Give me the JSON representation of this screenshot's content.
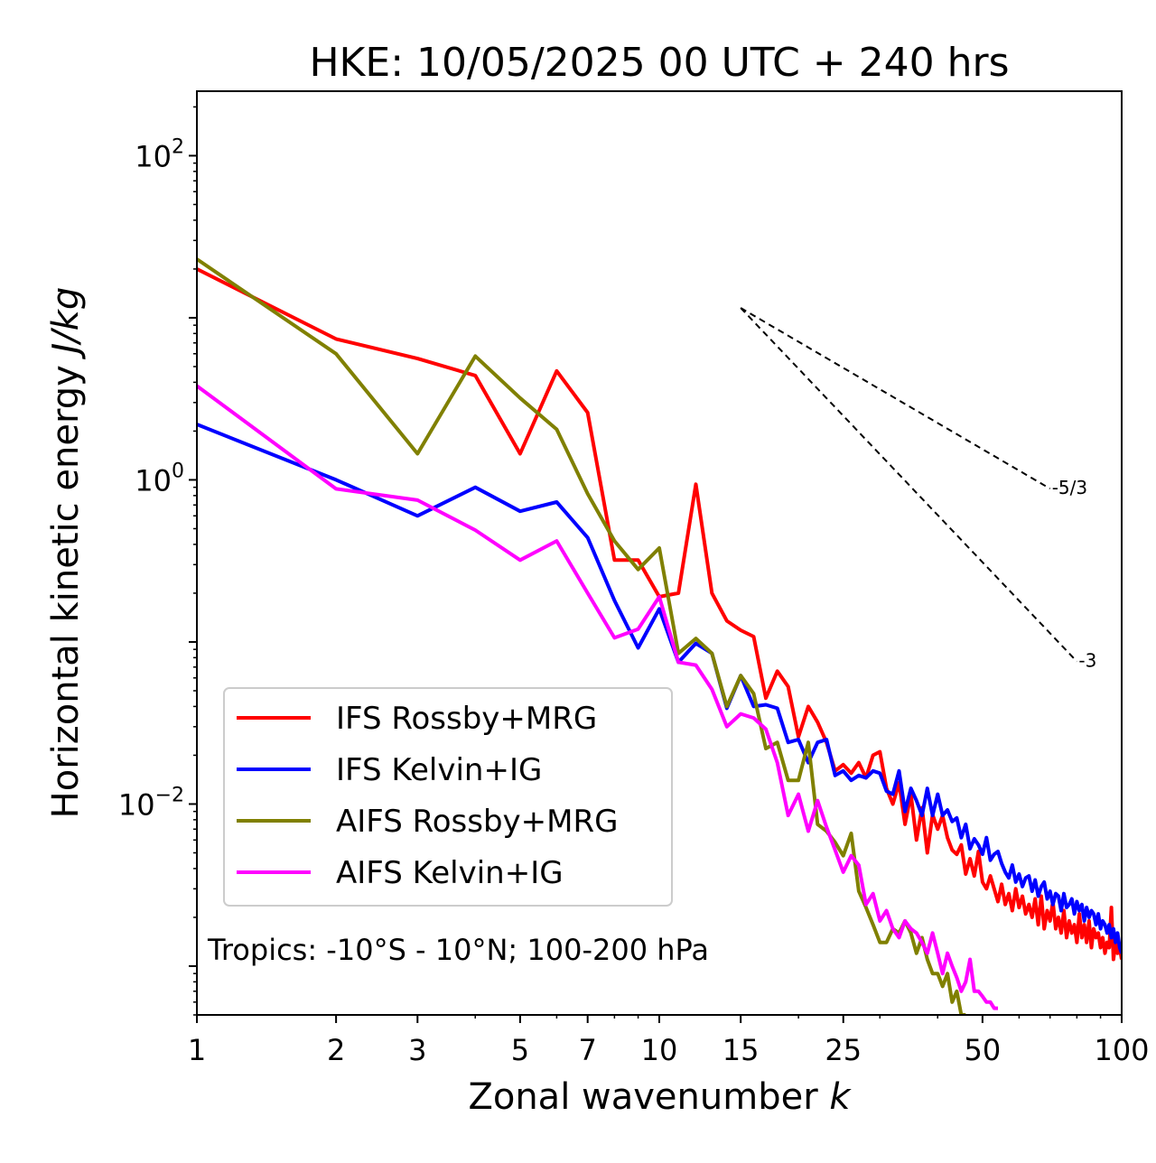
{
  "chart_data": {
    "type": "line",
    "title": "HKE: 10/05/2025 00 UTC + 240 hrs",
    "xlabel_text": "Zonal wavenumber ",
    "xlabel_var": "k",
    "ylabel_text": "Horizontal kinetic energy ",
    "ylabel_unit": "J/kg",
    "x_scale": "log",
    "y_scale": "log",
    "xlim": [
      1,
      100
    ],
    "ylim": [
      0.0005,
      250
    ],
    "x_ticks": [
      1,
      2,
      3,
      5,
      7,
      10,
      15,
      25,
      50,
      100
    ],
    "x_tick_labels": [
      "1",
      "2",
      "3",
      "5",
      "7",
      "10",
      "15",
      "25",
      "50",
      "100"
    ],
    "y_ticks": [
      {
        "value": 100,
        "base": "10",
        "exp": "2"
      },
      {
        "value": 1,
        "base": "10",
        "exp": "0"
      },
      {
        "value": 0.01,
        "base": "10",
        "exp": "−2"
      }
    ],
    "grid": false,
    "legend_position": "lower-left",
    "annotation": "Tropics: -10°S - 10°N; 100-200 hPa",
    "reference_slopes": [
      {
        "label": "-5/3",
        "slope": -1.6667,
        "x_start": 15,
        "y_start": 11.5,
        "x_end": 70
      },
      {
        "label": "-3",
        "slope": -3,
        "x_start": 15,
        "y_start": 11.5,
        "x_end": 80
      }
    ],
    "series": [
      {
        "name": "IFS Rossby+MRG",
        "color": "#ff0000",
        "x": [
          1,
          2,
          3,
          4,
          5,
          6,
          7,
          8,
          9,
          10,
          11,
          12,
          13,
          14,
          15,
          16,
          17,
          18,
          19,
          20,
          21,
          22,
          23,
          24,
          25,
          26,
          27,
          28,
          29,
          30,
          31,
          32,
          33,
          34,
          35,
          36,
          37,
          38,
          39,
          40,
          41,
          42,
          43,
          44,
          45,
          46,
          47,
          48,
          49,
          50,
          51,
          52,
          53,
          54,
          55,
          56,
          57,
          58,
          59,
          60,
          61,
          62,
          63,
          64,
          65,
          66,
          67,
          68,
          69,
          70,
          71,
          72,
          73,
          74,
          75,
          76,
          77,
          78,
          79,
          80,
          81,
          82,
          83,
          84,
          85,
          86,
          87,
          88,
          89,
          90,
          91,
          92,
          93,
          94,
          95,
          96,
          97,
          98,
          99,
          100
        ],
        "y": [
          20,
          7.4,
          5.6,
          4.4,
          1.45,
          4.7,
          2.6,
          0.32,
          0.32,
          0.19,
          0.2,
          0.94,
          0.2,
          0.135,
          0.118,
          0.108,
          0.045,
          0.066,
          0.053,
          0.026,
          0.04,
          0.032,
          0.024,
          0.016,
          0.0175,
          0.0155,
          0.018,
          0.0145,
          0.02,
          0.021,
          0.0125,
          0.01,
          0.0135,
          0.0075,
          0.0115,
          0.006,
          0.0095,
          0.005,
          0.0086,
          0.007,
          0.0085,
          0.0062,
          0.0052,
          0.0049,
          0.0056,
          0.0037,
          0.0046,
          0.0036,
          0.0051,
          0.0033,
          0.003,
          0.0036,
          0.003,
          0.0025,
          0.0032,
          0.0024,
          0.0028,
          0.0022,
          0.003,
          0.0023,
          0.0027,
          0.0021,
          0.0024,
          0.002,
          0.0026,
          0.0018,
          0.0027,
          0.0017,
          0.0022,
          0.0019,
          0.0025,
          0.0017,
          0.002,
          0.0016,
          0.0022,
          0.0015,
          0.0019,
          0.0016,
          0.0018,
          0.0014,
          0.0021,
          0.0015,
          0.0018,
          0.0014,
          0.0019,
          0.0013,
          0.0017,
          0.0015,
          0.0016,
          0.0013,
          0.0015,
          0.0012,
          0.0014,
          0.0013,
          0.0023,
          0.0011,
          0.0014,
          0.0012,
          0.0013,
          0.0011
        ]
      },
      {
        "name": "IFS Kelvin+IG",
        "color": "#0000ff",
        "x": [
          1,
          2,
          3,
          4,
          5,
          6,
          7,
          8,
          9,
          10,
          11,
          12,
          13,
          14,
          15,
          16,
          17,
          18,
          19,
          20,
          21,
          22,
          23,
          24,
          25,
          26,
          27,
          28,
          29,
          30,
          31,
          32,
          33,
          34,
          35,
          36,
          37,
          38,
          39,
          40,
          41,
          42,
          43,
          44,
          45,
          46,
          47,
          48,
          49,
          50,
          51,
          52,
          53,
          54,
          55,
          56,
          57,
          58,
          59,
          60,
          61,
          62,
          63,
          64,
          65,
          66,
          67,
          68,
          69,
          70,
          71,
          72,
          73,
          74,
          75,
          76,
          77,
          78,
          79,
          80,
          81,
          82,
          83,
          84,
          85,
          86,
          87,
          88,
          89,
          90,
          91,
          92,
          93,
          94,
          95,
          96,
          97,
          98,
          99,
          100
        ],
        "y": [
          2.2,
          1.0,
          0.6,
          0.9,
          0.64,
          0.73,
          0.44,
          0.18,
          0.092,
          0.16,
          0.075,
          0.098,
          0.085,
          0.039,
          0.062,
          0.04,
          0.041,
          0.039,
          0.024,
          0.025,
          0.018,
          0.024,
          0.025,
          0.015,
          0.016,
          0.014,
          0.015,
          0.0145,
          0.016,
          0.0155,
          0.012,
          0.0115,
          0.016,
          0.009,
          0.0125,
          0.0105,
          0.0085,
          0.0125,
          0.0085,
          0.0115,
          0.0085,
          0.0092,
          0.0078,
          0.0082,
          0.0062,
          0.0075,
          0.0053,
          0.0061,
          0.0056,
          0.0049,
          0.0062,
          0.0045,
          0.0049,
          0.0051,
          0.0043,
          0.0038,
          0.0035,
          0.0042,
          0.0033,
          0.0037,
          0.0031,
          0.0035,
          0.0036,
          0.0029,
          0.0034,
          0.0027,
          0.0031,
          0.0033,
          0.0026,
          0.0029,
          0.0024,
          0.0028,
          0.0027,
          0.0022,
          0.0028,
          0.0023,
          0.0024,
          0.0026,
          0.0021,
          0.0025,
          0.0022,
          0.0024,
          0.0019,
          0.0023,
          0.002,
          0.0022,
          0.0021,
          0.0018,
          0.0021,
          0.0017,
          0.0019,
          0.0018,
          0.0016,
          0.0018,
          0.0015,
          0.0017,
          0.0014,
          0.0016,
          0.0013,
          0.0012
        ]
      },
      {
        "name": "AIFS Rossby+MRG",
        "color": "#808000",
        "x": [
          1,
          2,
          3,
          4,
          5,
          6,
          7,
          8,
          9,
          10,
          11,
          12,
          13,
          14,
          15,
          16,
          17,
          18,
          19,
          20,
          21,
          22,
          23,
          24,
          25,
          26,
          27,
          28,
          29,
          30,
          31,
          32,
          33,
          34,
          35,
          36,
          37,
          38,
          39,
          40,
          41,
          42,
          43,
          44,
          45,
          46
        ],
        "y": [
          23,
          6.0,
          1.45,
          5.8,
          3.2,
          2.05,
          0.82,
          0.42,
          0.28,
          0.38,
          0.085,
          0.105,
          0.085,
          0.04,
          0.062,
          0.048,
          0.022,
          0.024,
          0.014,
          0.014,
          0.024,
          0.0075,
          0.0068,
          0.0058,
          0.0048,
          0.0066,
          0.0029,
          0.0023,
          0.0018,
          0.0014,
          0.0014,
          0.0017,
          0.0016,
          0.0019,
          0.0016,
          0.0012,
          0.0015,
          0.0011,
          0.0009,
          0.0009,
          0.00075,
          0.0009,
          0.0006,
          0.0007,
          0.0005,
          0.0005
        ]
      },
      {
        "name": "AIFS Kelvin+IG",
        "color": "#ff00ff",
        "x": [
          1,
          2,
          3,
          4,
          5,
          6,
          7,
          8,
          9,
          10,
          11,
          12,
          13,
          14,
          15,
          16,
          17,
          18,
          19,
          20,
          21,
          22,
          23,
          24,
          25,
          26,
          27,
          28,
          29,
          30,
          31,
          32,
          33,
          34,
          35,
          36,
          37,
          38,
          39,
          40,
          41,
          42,
          43,
          44,
          45,
          46,
          47,
          48,
          49,
          50,
          51,
          52,
          53,
          54
        ],
        "y": [
          3.8,
          0.88,
          0.75,
          0.49,
          0.32,
          0.42,
          0.2,
          0.106,
          0.12,
          0.19,
          0.075,
          0.072,
          0.051,
          0.03,
          0.036,
          0.034,
          0.029,
          0.018,
          0.0085,
          0.0115,
          0.0068,
          0.0105,
          0.0072,
          0.0052,
          0.0038,
          0.0048,
          0.0042,
          0.0024,
          0.0028,
          0.0019,
          0.0022,
          0.0017,
          0.0015,
          0.0019,
          0.0017,
          0.0016,
          0.0014,
          0.0012,
          0.0016,
          0.0012,
          0.0009,
          0.0012,
          0.001,
          0.00085,
          0.0007,
          0.0008,
          0.0011,
          0.0007,
          0.0007,
          0.00065,
          0.0006,
          0.0006,
          0.00055,
          0.00055
        ]
      }
    ]
  }
}
